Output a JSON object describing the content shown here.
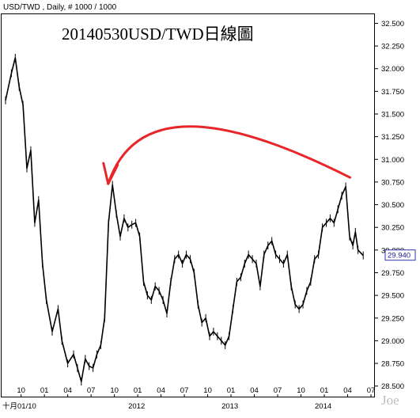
{
  "header": {
    "symbol_line": "USD/TWD , Daily, # 1000 / 1000"
  },
  "title": "20140530USD/TWD日線圖",
  "last_price_label": "29.940",
  "watermark": "Joe",
  "colors": {
    "price_bars": "#000000",
    "annotation_arrow": "#e8262a",
    "badge_border": "#3333aa",
    "badge_text": "#1a1a99"
  },
  "annotation": {
    "type": "curved-arrow",
    "from_date": "2014-04",
    "from_price": 30.8,
    "to_date": "2011-09",
    "to_price": 30.73
  },
  "chart_data": {
    "type": "line",
    "title": "20140530USD/TWD日線圖",
    "xlabel": "",
    "ylabel": "",
    "ylim": [
      28.375,
      32.6
    ],
    "xlim": [
      "2010-08",
      "2014-07"
    ],
    "y_ticks": [
      "28.500",
      "28.750",
      "29.000",
      "29.250",
      "29.500",
      "29.750",
      "30.000",
      "30.250",
      "30.500",
      "30.750",
      "31.000",
      "31.250",
      "31.500",
      "31.750",
      "32.000",
      "32.250",
      "32.500"
    ],
    "x_ticks": [
      "10",
      "01",
      "04",
      "07",
      "10",
      "01",
      "04",
      "07",
      "10",
      "01",
      "04",
      "07",
      "10",
      "01",
      "04",
      "07"
    ],
    "x_tick_dates": [
      "2010-10",
      "2011-01",
      "2011-04",
      "2011-07",
      "2011-10",
      "2012-01",
      "2012-04",
      "2012-07",
      "2012-10",
      "2013-01",
      "2013-04",
      "2013-07",
      "2013-10",
      "2014-01",
      "2014-04",
      "2014-07"
    ],
    "bottom_labels": [
      {
        "text": "十月01/10",
        "date": "2010-08"
      },
      {
        "text": "2012",
        "date": "2012-01"
      },
      {
        "text": "2013",
        "date": "2013-01"
      },
      {
        "text": "2014",
        "date": "2014-01"
      }
    ],
    "grid": false,
    "last_value": 29.94,
    "series": [
      {
        "points": [
          [
            "2010-08",
            31.65
          ],
          [
            "2010-09",
            31.95
          ],
          [
            "2010-09",
            32.12
          ],
          [
            "2010-10",
            31.8
          ],
          [
            "2010-10",
            31.6
          ],
          [
            "2010-11",
            30.9
          ],
          [
            "2010-11",
            31.1
          ],
          [
            "2010-12",
            30.3
          ],
          [
            "2010-12",
            30.55
          ],
          [
            "2011-01",
            29.85
          ],
          [
            "2011-01",
            29.45
          ],
          [
            "2011-02",
            29.1
          ],
          [
            "2011-03",
            29.35
          ],
          [
            "2011-03",
            29.0
          ],
          [
            "2011-04",
            28.75
          ],
          [
            "2011-05",
            28.85
          ],
          [
            "2011-05",
            28.7
          ],
          [
            "2011-06",
            28.55
          ],
          [
            "2011-06",
            28.8
          ],
          [
            "2011-07",
            28.72
          ],
          [
            "2011-07",
            28.7
          ],
          [
            "2011-08",
            28.85
          ],
          [
            "2011-08",
            28.95
          ],
          [
            "2011-09",
            29.25
          ],
          [
            "2011-09",
            30.3
          ],
          [
            "2011-10",
            30.72
          ],
          [
            "2011-10",
            30.4
          ],
          [
            "2011-11",
            30.15
          ],
          [
            "2011-11",
            30.35
          ],
          [
            "2011-12",
            30.25
          ],
          [
            "2011-12",
            30.28
          ],
          [
            "2012-01",
            30.3
          ],
          [
            "2012-01",
            30.15
          ],
          [
            "2012-02",
            29.65
          ],
          [
            "2012-02",
            29.5
          ],
          [
            "2012-03",
            29.45
          ],
          [
            "2012-03",
            29.6
          ],
          [
            "2012-04",
            29.55
          ],
          [
            "2012-04",
            29.45
          ],
          [
            "2012-05",
            29.3
          ],
          [
            "2012-05",
            29.65
          ],
          [
            "2012-06",
            29.9
          ],
          [
            "2012-06",
            29.95
          ],
          [
            "2012-07",
            29.85
          ],
          [
            "2012-07",
            29.95
          ],
          [
            "2012-08",
            29.9
          ],
          [
            "2012-08",
            29.75
          ],
          [
            "2012-09",
            29.4
          ],
          [
            "2012-09",
            29.2
          ],
          [
            "2012-10",
            29.25
          ],
          [
            "2012-10",
            29.05
          ],
          [
            "2012-11",
            29.1
          ],
          [
            "2012-11",
            29.05
          ],
          [
            "2012-12",
            29.0
          ],
          [
            "2012-12",
            28.95
          ],
          [
            "2013-01",
            29.05
          ],
          [
            "2013-01",
            29.35
          ],
          [
            "2013-02",
            29.65
          ],
          [
            "2013-02",
            29.7
          ],
          [
            "2013-03",
            29.85
          ],
          [
            "2013-03",
            29.95
          ],
          [
            "2013-04",
            29.9
          ],
          [
            "2013-04",
            29.85
          ],
          [
            "2013-05",
            29.6
          ],
          [
            "2013-05",
            29.95
          ],
          [
            "2013-06",
            30.05
          ],
          [
            "2013-06",
            30.1
          ],
          [
            "2013-07",
            29.95
          ],
          [
            "2013-07",
            29.9
          ],
          [
            "2013-08",
            29.85
          ],
          [
            "2013-08",
            29.95
          ],
          [
            "2013-09",
            29.6
          ],
          [
            "2013-09",
            29.4
          ],
          [
            "2013-10",
            29.35
          ],
          [
            "2013-10",
            29.4
          ],
          [
            "2013-11",
            29.55
          ],
          [
            "2013-11",
            29.65
          ],
          [
            "2013-12",
            29.9
          ],
          [
            "2013-12",
            29.95
          ],
          [
            "2014-01",
            30.25
          ],
          [
            "2014-01",
            30.3
          ],
          [
            "2014-02",
            30.35
          ],
          [
            "2014-02",
            30.3
          ],
          [
            "2014-03",
            30.45
          ],
          [
            "2014-03",
            30.6
          ],
          [
            "2014-04",
            30.7
          ],
          [
            "2014-04",
            30.15
          ],
          [
            "2014-05",
            30.05
          ],
          [
            "2014-05",
            30.2
          ],
          [
            "2014-05",
            30.0
          ],
          [
            "2014-06",
            29.94
          ]
        ]
      }
    ]
  }
}
